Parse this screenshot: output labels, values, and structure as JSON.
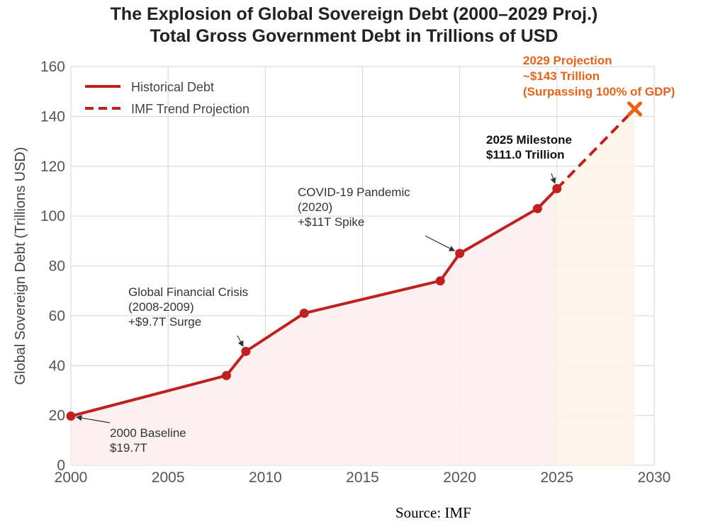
{
  "chart_data": {
    "type": "line",
    "title": "The Explosion of Global Sovereign Debt (2000–2029 Proj.)",
    "subtitle": "Total Gross Government Debt in Trillions of USD",
    "ylabel": "Global Sovereign Debt (Trillions USD)",
    "xlabel": "",
    "xlim": [
      2000,
      2030
    ],
    "ylim": [
      0,
      160
    ],
    "x_ticks": [
      2000,
      2005,
      2010,
      2015,
      2020,
      2025,
      2030
    ],
    "y_ticks": [
      0,
      20,
      40,
      60,
      80,
      100,
      120,
      140,
      160
    ],
    "grid": true,
    "legend_position": "top-left",
    "series": [
      {
        "name": "Historical Debt",
        "style": "solid",
        "color": "#c0201e",
        "x": [
          2000,
          2008,
          2009,
          2012,
          2019,
          2020,
          2024,
          2025
        ],
        "y": [
          19.7,
          36,
          45.7,
          61,
          74,
          85,
          103,
          111.0
        ]
      },
      {
        "name": "IMF Trend Projection",
        "style": "dashed",
        "color": "#c0201e",
        "x": [
          2025,
          2029
        ],
        "y": [
          111.0,
          143
        ]
      }
    ],
    "projection_marker": {
      "x": 2029,
      "y": 143,
      "color": "#e8631a",
      "shape": "x"
    },
    "annotations": [
      {
        "lines": [
          "2000 Baseline",
          "$19.7T"
        ],
        "target_x": 2000,
        "target_y": 19.7,
        "style": "normal"
      },
      {
        "lines": [
          "Global Financial Crisis",
          "(2008-2009)",
          "+$9.7T Surge"
        ],
        "target_x": 2009,
        "target_y": 45.7,
        "style": "normal"
      },
      {
        "lines": [
          "COVID-19 Pandemic",
          "(2020)",
          "+$11T Spike"
        ],
        "target_x": 2020,
        "target_y": 85,
        "style": "normal"
      },
      {
        "lines": [
          "2025 Milestone",
          "$111.0 Trillion"
        ],
        "target_x": 2025,
        "target_y": 111.0,
        "style": "bold"
      },
      {
        "lines": [
          "2029 Projection",
          "~$143 Trillion",
          "(Surpassing 100% of GDP)"
        ],
        "target_x": 2029,
        "target_y": 143,
        "style": "orange"
      }
    ],
    "shading": {
      "historical_fill": "#fdeeee",
      "projection_fill": "#fdf4e8"
    }
  },
  "source": "Source: IMF"
}
